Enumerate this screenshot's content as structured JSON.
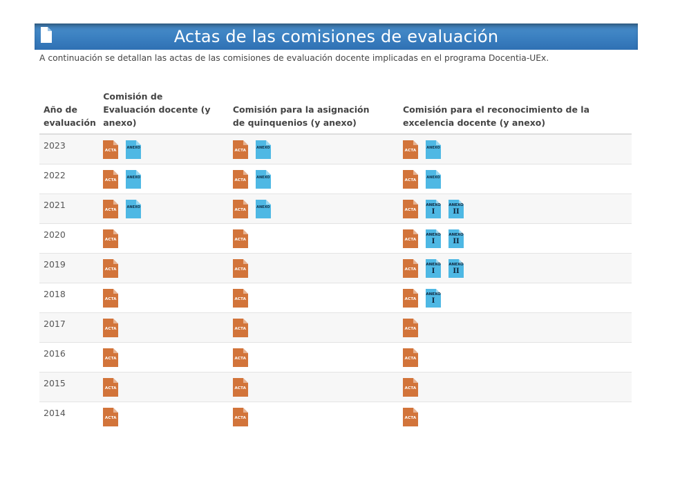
{
  "page": {
    "title": "Actas de las comisiones de evaluación",
    "intro": "A continuación se detallan las actas de las comisiones de evaluación docente implicadas en el programa Docentia-UEx.",
    "icon": "document-icon"
  },
  "colors": {
    "banner": "#3a7fc0",
    "acta_icon": "#d2743a",
    "anexo_icon": "#4eb8e4"
  },
  "table": {
    "headers": {
      "year": "Año de evaluación",
      "col1": "Comisión de Evaluación docente (y anexo)",
      "col2": "Comisión para la asignación de quinquenios (y anexo)",
      "col3": "Comisión para el reconocimiento de la excelencia docente (y anexo)"
    },
    "labels": {
      "acta": "ACTA",
      "anexo": "ANEXO",
      "anexo_short": "ANEXO",
      "num_1": "I",
      "num_2": "II"
    },
    "rows": [
      {
        "year": "2023",
        "c1": [
          "acta",
          "anexo"
        ],
        "c2": [
          "acta",
          "anexo"
        ],
        "c3": [
          "acta",
          "anexo"
        ]
      },
      {
        "year": "2022",
        "c1": [
          "acta",
          "anexo"
        ],
        "c2": [
          "acta",
          "anexo"
        ],
        "c3": [
          "acta",
          "anexo"
        ]
      },
      {
        "year": "2021",
        "c1": [
          "acta",
          "anexo"
        ],
        "c2": [
          "acta",
          "anexo"
        ],
        "c3": [
          "acta",
          "anexo-1",
          "anexo-2"
        ]
      },
      {
        "year": "2020",
        "c1": [
          "acta"
        ],
        "c2": [
          "acta"
        ],
        "c3": [
          "acta",
          "anexo-1",
          "anexo-2"
        ]
      },
      {
        "year": "2019",
        "c1": [
          "acta"
        ],
        "c2": [
          "acta"
        ],
        "c3": [
          "acta",
          "anexo-1",
          "anexo-2"
        ]
      },
      {
        "year": "2018",
        "c1": [
          "acta"
        ],
        "c2": [
          "acta"
        ],
        "c3": [
          "acta",
          "anexo-1"
        ]
      },
      {
        "year": "2017",
        "c1": [
          "acta"
        ],
        "c2": [
          "acta"
        ],
        "c3": [
          "acta"
        ]
      },
      {
        "year": "2016",
        "c1": [
          "acta"
        ],
        "c2": [
          "acta"
        ],
        "c3": [
          "acta"
        ]
      },
      {
        "year": "2015",
        "c1": [
          "acta"
        ],
        "c2": [
          "acta"
        ],
        "c3": [
          "acta"
        ]
      },
      {
        "year": "2014",
        "c1": [
          "acta"
        ],
        "c2": [
          "acta"
        ],
        "c3": [
          "acta"
        ]
      }
    ]
  }
}
